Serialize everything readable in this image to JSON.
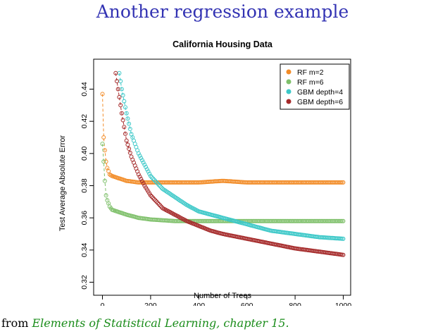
{
  "slide": {
    "title": "Another regression example",
    "footer_prefix": "from",
    "footer_citation": "Elements of Statistical Learning, chapter 15."
  },
  "colors": {
    "title": "#3333b3",
    "citation": "#1a8c1a"
  },
  "chart_data": {
    "type": "scatter",
    "title": "California Housing Data",
    "xlabel": "Number of Trees",
    "ylabel": "Test Average Absolute Error",
    "xlim": [
      0,
      1000
    ],
    "ylim": [
      0.32,
      0.44
    ],
    "xticks": [
      "0",
      "200",
      "400",
      "600",
      "800",
      "1000"
    ],
    "yticks": [
      "0.32",
      "0.34",
      "0.36",
      "0.38",
      "0.40",
      "0.42",
      "0.44"
    ],
    "legend_position": "top-right",
    "series": [
      {
        "name": "RF m=2",
        "color": "#f28c28",
        "points": [
          [
            0,
            0.437
          ],
          [
            5,
            0.41
          ],
          [
            10,
            0.402
          ],
          [
            15,
            0.395
          ],
          [
            20,
            0.391
          ],
          [
            30,
            0.387
          ],
          [
            40,
            0.386
          ],
          [
            60,
            0.385
          ],
          [
            80,
            0.384
          ],
          [
            100,
            0.383
          ],
          [
            150,
            0.382
          ],
          [
            200,
            0.382
          ],
          [
            300,
            0.382
          ],
          [
            400,
            0.382
          ],
          [
            500,
            0.383
          ],
          [
            600,
            0.382
          ],
          [
            700,
            0.382
          ],
          [
            800,
            0.382
          ],
          [
            900,
            0.382
          ],
          [
            1000,
            0.382
          ]
        ]
      },
      {
        "name": "RF m=6",
        "color": "#7fc06b",
        "points": [
          [
            0,
            0.406
          ],
          [
            5,
            0.395
          ],
          [
            10,
            0.383
          ],
          [
            15,
            0.374
          ],
          [
            20,
            0.371
          ],
          [
            30,
            0.367
          ],
          [
            40,
            0.365
          ],
          [
            60,
            0.364
          ],
          [
            80,
            0.363
          ],
          [
            100,
            0.362
          ],
          [
            150,
            0.36
          ],
          [
            200,
            0.359
          ],
          [
            300,
            0.358
          ],
          [
            400,
            0.358
          ],
          [
            500,
            0.358
          ],
          [
            600,
            0.358
          ],
          [
            700,
            0.358
          ],
          [
            800,
            0.358
          ],
          [
            900,
            0.358
          ],
          [
            1000,
            0.358
          ]
        ]
      },
      {
        "name": "GBM depth=4",
        "color": "#3cc8c8",
        "points": [
          [
            70,
            0.45
          ],
          [
            80,
            0.44
          ],
          [
            100,
            0.425
          ],
          [
            120,
            0.412
          ],
          [
            150,
            0.4
          ],
          [
            200,
            0.386
          ],
          [
            250,
            0.378
          ],
          [
            300,
            0.373
          ],
          [
            350,
            0.368
          ],
          [
            400,
            0.364
          ],
          [
            450,
            0.362
          ],
          [
            500,
            0.36
          ],
          [
            550,
            0.358
          ],
          [
            600,
            0.356
          ],
          [
            650,
            0.354
          ],
          [
            700,
            0.352
          ],
          [
            800,
            0.35
          ],
          [
            900,
            0.348
          ],
          [
            1000,
            0.347
          ]
        ]
      },
      {
        "name": "GBM depth=6",
        "color": "#a52a2a",
        "points": [
          [
            55,
            0.45
          ],
          [
            60,
            0.445
          ],
          [
            80,
            0.425
          ],
          [
            100,
            0.408
          ],
          [
            120,
            0.398
          ],
          [
            150,
            0.387
          ],
          [
            175,
            0.38
          ],
          [
            200,
            0.374
          ],
          [
            250,
            0.366
          ],
          [
            300,
            0.362
          ],
          [
            350,
            0.358
          ],
          [
            400,
            0.355
          ],
          [
            450,
            0.352
          ],
          [
            500,
            0.35
          ],
          [
            600,
            0.347
          ],
          [
            700,
            0.344
          ],
          [
            800,
            0.341
          ],
          [
            900,
            0.339
          ],
          [
            1000,
            0.337
          ]
        ]
      }
    ]
  }
}
